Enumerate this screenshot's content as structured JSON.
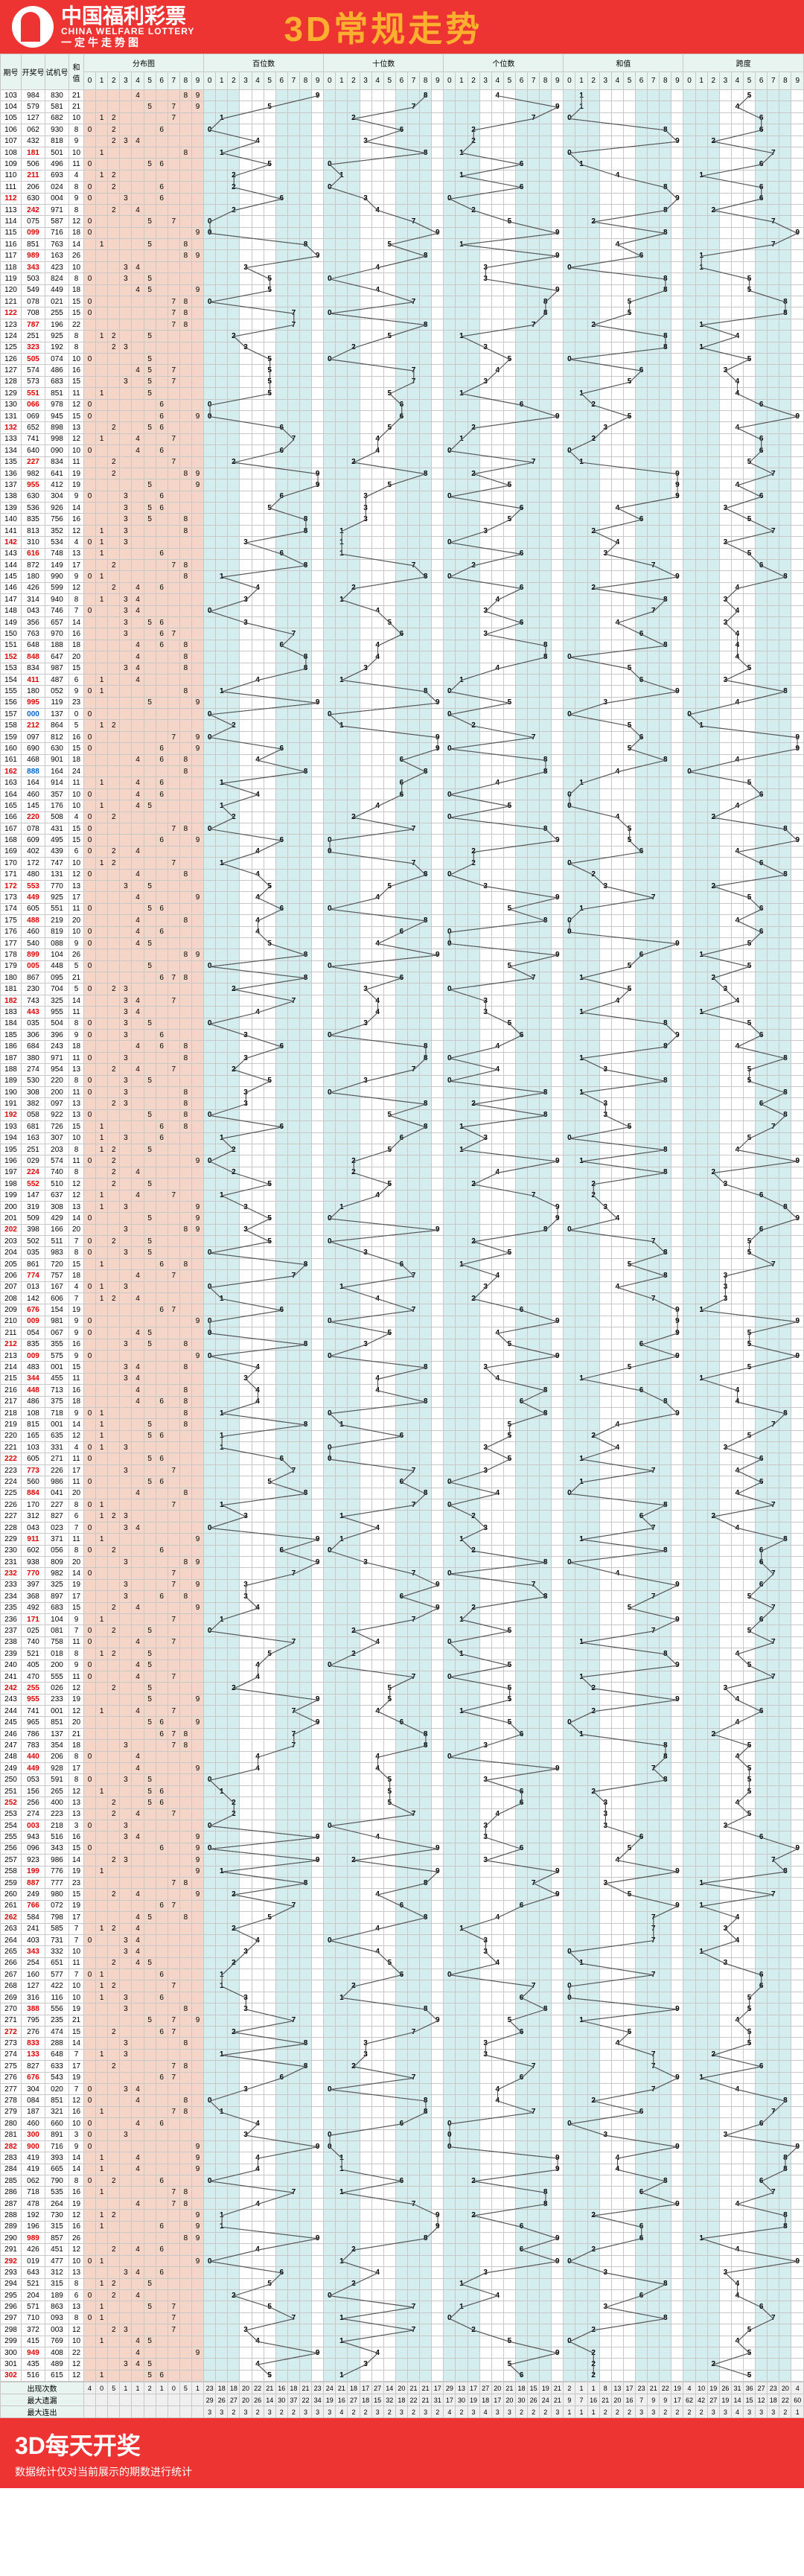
{
  "header": {
    "cn": "中国福利彩票",
    "en": "CHINA WELFARE LOTTERY",
    "tag": "一定牛走势图",
    "title": "3D常规走势"
  },
  "cols": {
    "issue": "期号",
    "draw": "开奖号",
    "test": "试机号",
    "sum": "和值",
    "dist": "分布图",
    "h": "百位数",
    "t": "十位数",
    "u": "个位数",
    "hz": "和值",
    "kd": "跨度"
  },
  "footer": {
    "title": "3D每天开奖",
    "sub": "数据统计仅对当前展示的期数进行统计"
  },
  "statRows": [
    "出现次数",
    "最大遗漏",
    "最大连出"
  ],
  "digits": [
    0,
    1,
    2,
    3,
    4,
    5,
    6,
    7,
    8,
    9
  ],
  "colors": {
    "hdr_bg": "#e33",
    "hdr_accent": "#fdb030",
    "grid": "#c8c8c8",
    "dist_bg": "#f5d5c8",
    "zone_blue": "#d4edef",
    "zone_white": "#ffffff",
    "th_bg": "#e8f4f0",
    "text_red": "#d00",
    "text_blue": "#06c",
    "text_black": "#333",
    "line": "#555"
  },
  "rows": [
    {
      "i": "103",
      "d": "984",
      "t": "830",
      "s": 21
    },
    {
      "i": "104",
      "d": "579",
      "t": "581",
      "s": 21
    },
    {
      "i": "105",
      "d": "127",
      "t": "682",
      "s": 10
    },
    {
      "i": "106",
      "d": "062",
      "t": "930",
      "s": 8
    },
    {
      "i": "107",
      "d": "432",
      "t": "818",
      "s": 9
    },
    {
      "i": "108",
      "d": "181",
      "t": "501",
      "s": 10
    },
    {
      "i": "109",
      "d": "506",
      "t": "496",
      "s": 11
    },
    {
      "i": "110",
      "d": "211",
      "t": "693",
      "s": 4
    },
    {
      "i": "111",
      "d": "206",
      "t": "024",
      "s": 8
    },
    {
      "i": "112",
      "d": "630",
      "t": "004",
      "s": 9
    },
    {
      "i": "113",
      "d": "242",
      "t": "971",
      "s": 8
    },
    {
      "i": "114",
      "d": "075",
      "t": "587",
      "s": 12
    },
    {
      "i": "115",
      "d": "099",
      "t": "716",
      "s": 18
    },
    {
      "i": "116",
      "d": "851",
      "t": "763",
      "s": 14
    },
    {
      "i": "117",
      "d": "989",
      "t": "163",
      "s": 26
    },
    {
      "i": "118",
      "d": "343",
      "t": "423",
      "s": 10
    },
    {
      "i": "119",
      "d": "503",
      "t": "824",
      "s": 8
    },
    {
      "i": "120",
      "d": "549",
      "t": "449",
      "s": 18
    },
    {
      "i": "121",
      "d": "078",
      "t": "021",
      "s": 15
    },
    {
      "i": "122",
      "d": "708",
      "t": "255",
      "s": 15
    },
    {
      "i": "123",
      "d": "787",
      "t": "196",
      "s": 22
    },
    {
      "i": "124",
      "d": "251",
      "t": "925",
      "s": 8
    },
    {
      "i": "125",
      "d": "323",
      "t": "192",
      "s": 8
    },
    {
      "i": "126",
      "d": "505",
      "t": "074",
      "s": 10
    },
    {
      "i": "127",
      "d": "574",
      "t": "486",
      "s": 16
    },
    {
      "i": "128",
      "d": "573",
      "t": "683",
      "s": 15
    },
    {
      "i": "129",
      "d": "551",
      "t": "851",
      "s": 11
    },
    {
      "i": "130",
      "d": "066",
      "t": "978",
      "s": 12
    },
    {
      "i": "131",
      "d": "069",
      "t": "945",
      "s": 15
    },
    {
      "i": "132",
      "d": "652",
      "t": "898",
      "s": 13
    },
    {
      "i": "133",
      "d": "741",
      "t": "998",
      "s": 12
    },
    {
      "i": "134",
      "d": "640",
      "t": "090",
      "s": 10
    },
    {
      "i": "135",
      "d": "227",
      "t": "834",
      "s": 11
    },
    {
      "i": "136",
      "d": "982",
      "t": "641",
      "s": 19
    },
    {
      "i": "137",
      "d": "955",
      "t": "412",
      "s": 19
    },
    {
      "i": "138",
      "d": "630",
      "t": "304",
      "s": 9
    },
    {
      "i": "139",
      "d": "536",
      "t": "926",
      "s": 14
    },
    {
      "i": "140",
      "d": "835",
      "t": "756",
      "s": 16
    },
    {
      "i": "141",
      "d": "813",
      "t": "352",
      "s": 12
    },
    {
      "i": "142",
      "d": "310",
      "t": "534",
      "s": 4
    },
    {
      "i": "143",
      "d": "616",
      "t": "748",
      "s": 13
    },
    {
      "i": "144",
      "d": "872",
      "t": "149",
      "s": 17
    },
    {
      "i": "145",
      "d": "180",
      "t": "990",
      "s": 9
    },
    {
      "i": "146",
      "d": "426",
      "t": "599",
      "s": 12
    },
    {
      "i": "147",
      "d": "314",
      "t": "940",
      "s": 8
    },
    {
      "i": "148",
      "d": "043",
      "t": "746",
      "s": 7
    },
    {
      "i": "149",
      "d": "356",
      "t": "657",
      "s": 14
    },
    {
      "i": "150",
      "d": "763",
      "t": "970",
      "s": 16
    },
    {
      "i": "151",
      "d": "648",
      "t": "188",
      "s": 18
    },
    {
      "i": "152",
      "d": "848",
      "t": "647",
      "s": 20
    },
    {
      "i": "153",
      "d": "834",
      "t": "987",
      "s": 15
    },
    {
      "i": "154",
      "d": "411",
      "t": "487",
      "s": 6
    },
    {
      "i": "155",
      "d": "180",
      "t": "052",
      "s": 9
    },
    {
      "i": "156",
      "d": "995",
      "t": "119",
      "s": 23
    },
    {
      "i": "157",
      "d": "000",
      "t": "137",
      "s": 0
    },
    {
      "i": "158",
      "d": "212",
      "t": "864",
      "s": 5
    },
    {
      "i": "159",
      "d": "097",
      "t": "812",
      "s": 16
    },
    {
      "i": "160",
      "d": "690",
      "t": "630",
      "s": 15
    },
    {
      "i": "161",
      "d": "468",
      "t": "901",
      "s": 18
    },
    {
      "i": "162",
      "d": "888",
      "t": "164",
      "s": 24
    },
    {
      "i": "163",
      "d": "164",
      "t": "914",
      "s": 11
    },
    {
      "i": "164",
      "d": "460",
      "t": "357",
      "s": 10
    },
    {
      "i": "165",
      "d": "145",
      "t": "176",
      "s": 10
    },
    {
      "i": "166",
      "d": "220",
      "t": "508",
      "s": 4
    },
    {
      "i": "167",
      "d": "078",
      "t": "431",
      "s": 15
    },
    {
      "i": "168",
      "d": "609",
      "t": "495",
      "s": 15
    },
    {
      "i": "169",
      "d": "402",
      "t": "439",
      "s": 6
    },
    {
      "i": "170",
      "d": "172",
      "t": "747",
      "s": 10
    },
    {
      "i": "171",
      "d": "480",
      "t": "131",
      "s": 12
    },
    {
      "i": "172",
      "d": "553",
      "t": "770",
      "s": 13
    },
    {
      "i": "173",
      "d": "449",
      "t": "925",
      "s": 17
    },
    {
      "i": "174",
      "d": "605",
      "t": "551",
      "s": 11
    },
    {
      "i": "175",
      "d": "488",
      "t": "219",
      "s": 20
    },
    {
      "i": "176",
      "d": "460",
      "t": "819",
      "s": 10
    },
    {
      "i": "177",
      "d": "540",
      "t": "088",
      "s": 9
    },
    {
      "i": "178",
      "d": "899",
      "t": "104",
      "s": 26
    },
    {
      "i": "179",
      "d": "005",
      "t": "448",
      "s": 5
    },
    {
      "i": "180",
      "d": "867",
      "t": "095",
      "s": 21
    },
    {
      "i": "181",
      "d": "230",
      "t": "704",
      "s": 5
    },
    {
      "i": "182",
      "d": "743",
      "t": "325",
      "s": 14
    },
    {
      "i": "183",
      "d": "443",
      "t": "955",
      "s": 11
    },
    {
      "i": "184",
      "d": "035",
      "t": "504",
      "s": 8
    },
    {
      "i": "185",
      "d": "306",
      "t": "396",
      "s": 9
    },
    {
      "i": "186",
      "d": "684",
      "t": "243",
      "s": 18
    },
    {
      "i": "187",
      "d": "380",
      "t": "971",
      "s": 11
    },
    {
      "i": "188",
      "d": "274",
      "t": "954",
      "s": 13
    },
    {
      "i": "189",
      "d": "530",
      "t": "220",
      "s": 8
    },
    {
      "i": "190",
      "d": "308",
      "t": "200",
      "s": 11
    },
    {
      "i": "191",
      "d": "382",
      "t": "097",
      "s": 13
    },
    {
      "i": "192",
      "d": "058",
      "t": "922",
      "s": 13
    },
    {
      "i": "193",
      "d": "681",
      "t": "726",
      "s": 15
    },
    {
      "i": "194",
      "d": "163",
      "t": "307",
      "s": 10
    },
    {
      "i": "195",
      "d": "251",
      "t": "203",
      "s": 8
    },
    {
      "i": "196",
      "d": "029",
      "t": "574",
      "s": 11
    },
    {
      "i": "197",
      "d": "224",
      "t": "740",
      "s": 8
    },
    {
      "i": "198",
      "d": "552",
      "t": "510",
      "s": 12
    },
    {
      "i": "199",
      "d": "147",
      "t": "637",
      "s": 12
    },
    {
      "i": "200",
      "d": "319",
      "t": "308",
      "s": 13
    },
    {
      "i": "201",
      "d": "509",
      "t": "429",
      "s": 14
    },
    {
      "i": "202",
      "d": "398",
      "t": "166",
      "s": 20
    },
    {
      "i": "203",
      "d": "502",
      "t": "511",
      "s": 7
    },
    {
      "i": "204",
      "d": "035",
      "t": "983",
      "s": 8
    },
    {
      "i": "205",
      "d": "861",
      "t": "720",
      "s": 15
    },
    {
      "i": "206",
      "d": "774",
      "t": "757",
      "s": 18
    },
    {
      "i": "207",
      "d": "013",
      "t": "167",
      "s": 4
    },
    {
      "i": "208",
      "d": "142",
      "t": "606",
      "s": 7
    },
    {
      "i": "209",
      "d": "676",
      "t": "154",
      "s": 19
    },
    {
      "i": "210",
      "d": "009",
      "t": "981",
      "s": 9
    },
    {
      "i": "211",
      "d": "054",
      "t": "067",
      "s": 9
    },
    {
      "i": "212",
      "d": "835",
      "t": "355",
      "s": 16
    },
    {
      "i": "213",
      "d": "009",
      "t": "575",
      "s": 9
    },
    {
      "i": "214",
      "d": "483",
      "t": "001",
      "s": 15
    },
    {
      "i": "215",
      "d": "344",
      "t": "455",
      "s": 11
    },
    {
      "i": "216",
      "d": "448",
      "t": "713",
      "s": 16
    },
    {
      "i": "217",
      "d": "486",
      "t": "375",
      "s": 18
    },
    {
      "i": "218",
      "d": "108",
      "t": "718",
      "s": 9
    },
    {
      "i": "219",
      "d": "815",
      "t": "001",
      "s": 14
    },
    {
      "i": "220",
      "d": "165",
      "t": "635",
      "s": 12
    },
    {
      "i": "221",
      "d": "103",
      "t": "331",
      "s": 4
    },
    {
      "i": "222",
      "d": "605",
      "t": "271",
      "s": 11
    },
    {
      "i": "223",
      "d": "773",
      "t": "226",
      "s": 17
    },
    {
      "i": "224",
      "d": "560",
      "t": "986",
      "s": 11
    },
    {
      "i": "225",
      "d": "884",
      "t": "041",
      "s": 20
    },
    {
      "i": "226",
      "d": "170",
      "t": "227",
      "s": 8
    },
    {
      "i": "227",
      "d": "312",
      "t": "827",
      "s": 6
    },
    {
      "i": "228",
      "d": "043",
      "t": "023",
      "s": 7
    },
    {
      "i": "229",
      "d": "911",
      "t": "371",
      "s": 11
    },
    {
      "i": "230",
      "d": "602",
      "t": "056",
      "s": 8
    },
    {
      "i": "231",
      "d": "938",
      "t": "809",
      "s": 20
    },
    {
      "i": "232",
      "d": "770",
      "t": "982",
      "s": 14
    },
    {
      "i": "233",
      "d": "397",
      "t": "325",
      "s": 19
    },
    {
      "i": "234",
      "d": "368",
      "t": "897",
      "s": 17
    },
    {
      "i": "235",
      "d": "492",
      "t": "683",
      "s": 15
    },
    {
      "i": "236",
      "d": "171",
      "t": "104",
      "s": 9
    },
    {
      "i": "237",
      "d": "025",
      "t": "081",
      "s": 7
    },
    {
      "i": "238",
      "d": "740",
      "t": "758",
      "s": 11
    },
    {
      "i": "239",
      "d": "521",
      "t": "018",
      "s": 8
    },
    {
      "i": "240",
      "d": "405",
      "t": "200",
      "s": 9
    },
    {
      "i": "241",
      "d": "470",
      "t": "555",
      "s": 11
    },
    {
      "i": "242",
      "d": "255",
      "t": "026",
      "s": 12
    },
    {
      "i": "243",
      "d": "955",
      "t": "233",
      "s": 19
    },
    {
      "i": "244",
      "d": "741",
      "t": "001",
      "s": 12
    },
    {
      "i": "245",
      "d": "965",
      "t": "851",
      "s": 20
    },
    {
      "i": "246",
      "d": "786",
      "t": "137",
      "s": 21
    },
    {
      "i": "247",
      "d": "783",
      "t": "354",
      "s": 18
    },
    {
      "i": "248",
      "d": "440",
      "t": "206",
      "s": 8
    },
    {
      "i": "249",
      "d": "449",
      "t": "928",
      "s": 17
    },
    {
      "i": "250",
      "d": "053",
      "t": "591",
      "s": 8
    },
    {
      "i": "251",
      "d": "156",
      "t": "265",
      "s": 12
    },
    {
      "i": "252",
      "d": "256",
      "t": "400",
      "s": 13
    },
    {
      "i": "253",
      "d": "274",
      "t": "223",
      "s": 13
    },
    {
      "i": "254",
      "d": "003",
      "t": "218",
      "s": 3
    },
    {
      "i": "255",
      "d": "943",
      "t": "516",
      "s": 16
    },
    {
      "i": "256",
      "d": "096",
      "t": "343",
      "s": 15
    },
    {
      "i": "257",
      "d": "923",
      "t": "986",
      "s": 14
    },
    {
      "i": "258",
      "d": "199",
      "t": "776",
      "s": 19
    },
    {
      "i": "259",
      "d": "887",
      "t": "777",
      "s": 23
    },
    {
      "i": "260",
      "d": "249",
      "t": "980",
      "s": 15
    },
    {
      "i": "261",
      "d": "766",
      "t": "072",
      "s": 19
    },
    {
      "i": "262",
      "d": "584",
      "t": "798",
      "s": 17
    },
    {
      "i": "263",
      "d": "241",
      "t": "585",
      "s": 7
    },
    {
      "i": "264",
      "d": "403",
      "t": "731",
      "s": 7
    },
    {
      "i": "265",
      "d": "343",
      "t": "332",
      "s": 10
    },
    {
      "i": "266",
      "d": "254",
      "t": "651",
      "s": 11
    },
    {
      "i": "267",
      "d": "160",
      "t": "577",
      "s": 7
    },
    {
      "i": "268",
      "d": "127",
      "t": "422",
      "s": 10
    },
    {
      "i": "269",
      "d": "316",
      "t": "116",
      "s": 10
    },
    {
      "i": "270",
      "d": "388",
      "t": "556",
      "s": 19
    },
    {
      "i": "271",
      "d": "795",
      "t": "235",
      "s": 21
    },
    {
      "i": "272",
      "d": "276",
      "t": "474",
      "s": 15
    },
    {
      "i": "273",
      "d": "833",
      "t": "288",
      "s": 14
    },
    {
      "i": "274",
      "d": "133",
      "t": "648",
      "s": 7
    },
    {
      "i": "275",
      "d": "827",
      "t": "633",
      "s": 17
    },
    {
      "i": "276",
      "d": "676",
      "t": "543",
      "s": 19
    },
    {
      "i": "277",
      "d": "304",
      "t": "020",
      "s": 7
    },
    {
      "i": "278",
      "d": "084",
      "t": "851",
      "s": 12
    },
    {
      "i": "279",
      "d": "187",
      "t": "321",
      "s": 16
    },
    {
      "i": "280",
      "d": "460",
      "t": "660",
      "s": 10
    },
    {
      "i": "281",
      "d": "300",
      "t": "891",
      "s": 3
    },
    {
      "i": "282",
      "d": "900",
      "t": "716",
      "s": 9
    },
    {
      "i": "283",
      "d": "419",
      "t": "393",
      "s": 14
    },
    {
      "i": "284",
      "d": "419",
      "t": "665",
      "s": 14
    },
    {
      "i": "285",
      "d": "062",
      "t": "790",
      "s": 8
    },
    {
      "i": "286",
      "d": "718",
      "t": "535",
      "s": 16
    },
    {
      "i": "287",
      "d": "478",
      "t": "264",
      "s": 19
    },
    {
      "i": "288",
      "d": "192",
      "t": "730",
      "s": 12
    },
    {
      "i": "289",
      "d": "196",
      "t": "315",
      "s": 16
    },
    {
      "i": "290",
      "d": "989",
      "t": "857",
      "s": 26
    },
    {
      "i": "291",
      "d": "426",
      "t": "451",
      "s": 12
    },
    {
      "i": "292",
      "d": "019",
      "t": "477",
      "s": 10
    },
    {
      "i": "293",
      "d": "643",
      "t": "312",
      "s": 13
    },
    {
      "i": "294",
      "d": "521",
      "t": "315",
      "s": 8
    },
    {
      "i": "295",
      "d": "204",
      "t": "189",
      "s": 6
    },
    {
      "i": "296",
      "d": "571",
      "t": "863",
      "s": 13
    },
    {
      "i": "297",
      "d": "710",
      "t": "093",
      "s": 8
    },
    {
      "i": "298",
      "d": "372",
      "t": "003",
      "s": 12
    },
    {
      "i": "299",
      "d": "415",
      "t": "769",
      "s": 10
    },
    {
      "i": "300",
      "d": "949",
      "t": "408",
      "s": 22
    },
    {
      "i": "301",
      "d": "435",
      "t": "489",
      "s": 12
    },
    {
      "i": "302",
      "d": "516",
      "t": "615",
      "s": 12
    }
  ],
  "stats": {
    "dist": [
      [
        4,
        0,
        5,
        1,
        1,
        2,
        1,
        0,
        5,
        1,
        1,
        4,
        2,
        2,
        3,
        5,
        3,
        3,
        2,
        12,
        40,
        62,
        25,
        40,
        48,
        48,
        18,
        19,
        21,
        62,
        3,
        3,
        3,
        2,
        2,
        2,
        2,
        1,
        3,
        2
      ]
    ],
    "h": [
      [
        23,
        18,
        18,
        20,
        22,
        21,
        16,
        18,
        21,
        23
      ],
      [
        29,
        26,
        27,
        20,
        26,
        14,
        30,
        37,
        22,
        34
      ],
      [
        3,
        3,
        2,
        3,
        2,
        3,
        2,
        2,
        3,
        3
      ]
    ],
    "t": [
      [
        24,
        21,
        18,
        17,
        27,
        14,
        20,
        21,
        21,
        17
      ],
      [
        19,
        16,
        27,
        18,
        15,
        32,
        18,
        22,
        21,
        31
      ],
      [
        3,
        4,
        2,
        2,
        3,
        2,
        3,
        2,
        3,
        2
      ]
    ],
    "u": [
      [
        29,
        13,
        17,
        27,
        20,
        21,
        18,
        15,
        19,
        21
      ],
      [
        17,
        30,
        19,
        18,
        17,
        20,
        30,
        26,
        24,
        21
      ],
      [
        4,
        2,
        3,
        4,
        3,
        3,
        2,
        2,
        2,
        3
      ]
    ],
    "hz": [
      [
        2,
        1,
        1,
        8,
        13,
        17,
        23,
        21,
        22,
        19
      ],
      [
        9,
        7,
        16,
        21,
        20,
        16,
        7,
        9,
        9,
        17
      ],
      [
        1,
        1,
        1,
        2,
        2,
        2,
        3,
        3,
        2,
        2
      ]
    ],
    "kd": [
      [
        4,
        10,
        19,
        26,
        31,
        36,
        27,
        23,
        20,
        4
      ],
      [
        62,
        42,
        27,
        19,
        14,
        15,
        12,
        18,
        22,
        60
      ],
      [
        2,
        2,
        3,
        3,
        4,
        3,
        3,
        3,
        2,
        1
      ]
    ]
  }
}
